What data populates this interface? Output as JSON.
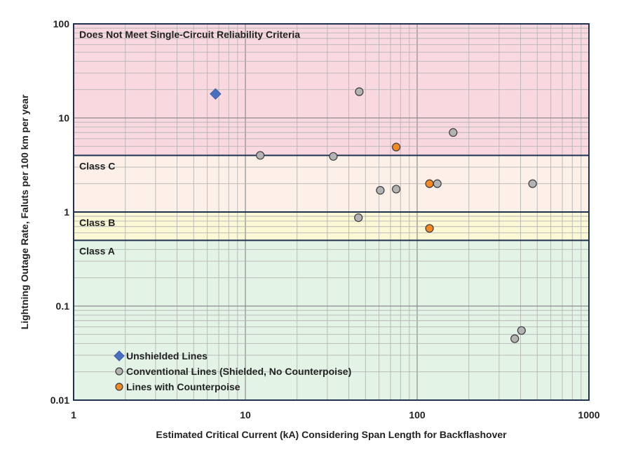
{
  "chart_data": {
    "type": "scatter",
    "title": "",
    "xlabel": "Estimated Critical Current (kA) Considering Span Length for Backflashover",
    "ylabel": "Lightning Outage Rate, Faluts per 100 km per year",
    "x_scale": "log",
    "y_scale": "log",
    "xlim": [
      1,
      1000
    ],
    "ylim": [
      0.01,
      100
    ],
    "x_ticks": [
      {
        "value": 1,
        "label": "1"
      },
      {
        "value": 10,
        "label": "10"
      },
      {
        "value": 100,
        "label": "100"
      },
      {
        "value": 1000,
        "label": "1000"
      }
    ],
    "y_ticks": [
      {
        "value": 100,
        "label": "100"
      },
      {
        "value": 10,
        "label": "10"
      },
      {
        "value": 1,
        "label": "1"
      },
      {
        "value": 0.1,
        "label": "0.1"
      },
      {
        "value": 0.01,
        "label": "0.01"
      }
    ],
    "grid": true,
    "legend_position": "bottom-left",
    "bands": [
      {
        "label": "Does Not Meet Single-Circuit Reliability Criteria",
        "y_from": 4,
        "y_to": 100,
        "color": "#f9d9df"
      },
      {
        "label": "Class C",
        "y_from": 1,
        "y_to": 4,
        "color": "#fcf0e9"
      },
      {
        "label": "Class B",
        "y_from": 0.5,
        "y_to": 1,
        "color": "#fbf8d6"
      },
      {
        "label": "Class A",
        "y_from": 0.01,
        "y_to": 0.5,
        "color": "#e3f4e7"
      }
    ],
    "series": [
      {
        "name": "Unshielded Lines",
        "marker": "diamond",
        "color": "#4a6fc0",
        "points": [
          {
            "x": 6.7,
            "y": 18
          }
        ]
      },
      {
        "name": "Conventional Lines (Shielded, No Counterpoise)",
        "marker": "circle",
        "color": "#b3b3b3",
        "points": [
          {
            "x": 46,
            "y": 19
          },
          {
            "x": 162,
            "y": 7
          },
          {
            "x": 12.2,
            "y": 4
          },
          {
            "x": 32.5,
            "y": 3.9
          },
          {
            "x": 61,
            "y": 1.7
          },
          {
            "x": 75.5,
            "y": 1.75
          },
          {
            "x": 131,
            "y": 2
          },
          {
            "x": 470,
            "y": 2
          },
          {
            "x": 45.5,
            "y": 0.87
          },
          {
            "x": 370,
            "y": 0.045
          },
          {
            "x": 405,
            "y": 0.055
          }
        ]
      },
      {
        "name": "Lines with Counterpoise",
        "marker": "circle",
        "color": "#ee8a2a",
        "points": [
          {
            "x": 75.5,
            "y": 4.9
          },
          {
            "x": 118,
            "y": 2
          },
          {
            "x": 118,
            "y": 0.67
          }
        ]
      }
    ]
  }
}
